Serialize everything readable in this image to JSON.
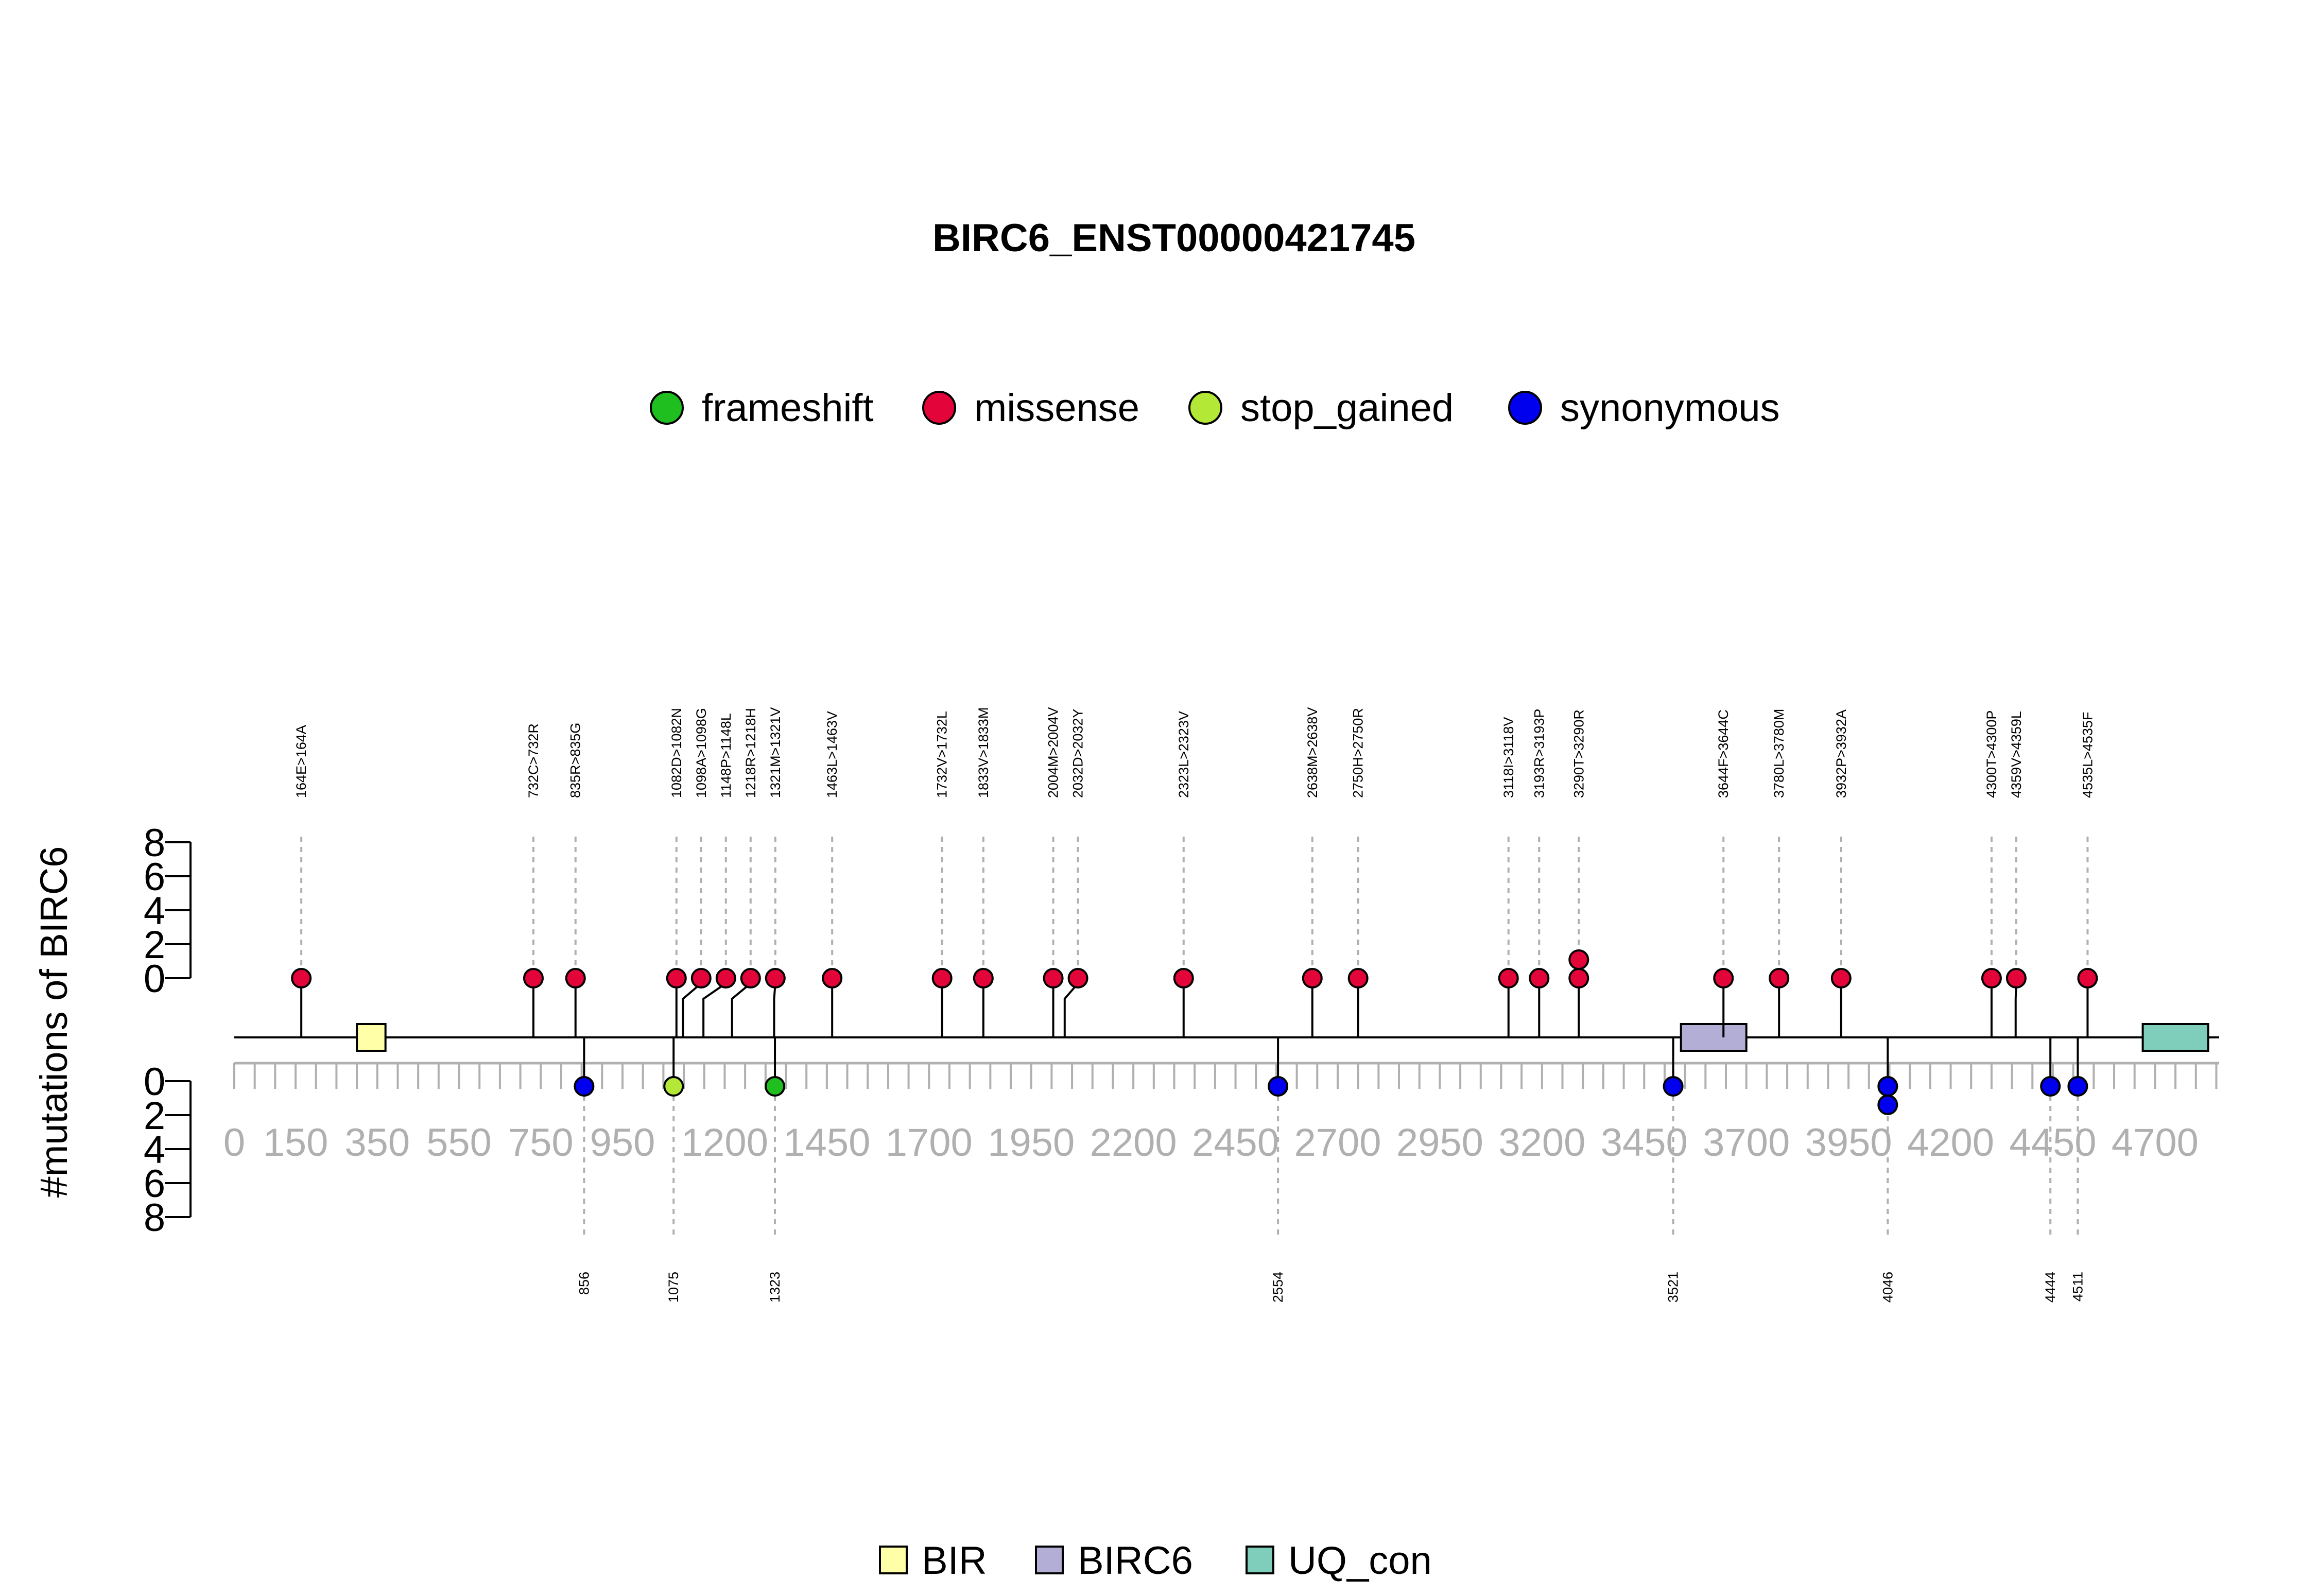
{
  "chart_data": {
    "type": "lollipop",
    "title": "BIRC6_ENST00000421745",
    "ylabel": "#mutations of BIRC6",
    "xlim": [
      0,
      4857
    ],
    "x_ticks": [
      0,
      150,
      350,
      550,
      750,
      950,
      1200,
      1450,
      1700,
      1950,
      2200,
      2450,
      2700,
      2950,
      3200,
      3450,
      3700,
      3950,
      4200,
      4450,
      4700
    ],
    "y_ticks_top": [
      0,
      2,
      4,
      6,
      8
    ],
    "y_ticks_bottom": [
      0,
      2,
      4,
      6,
      8
    ],
    "ylim": [
      0,
      8
    ],
    "legend": [
      {
        "name": "frameshift",
        "color": "#1fbf1f"
      },
      {
        "name": "missense",
        "color": "#e3053a"
      },
      {
        "name": "stop_gained",
        "color": "#b3e836"
      },
      {
        "name": "synonymous",
        "color": "#0000ee"
      }
    ],
    "domain_legend": [
      {
        "name": "BIR",
        "color": "#ffffa8"
      },
      {
        "name": "BIRC6",
        "color": "#b3aed6"
      },
      {
        "name": "UQ_con",
        "color": "#7fcdbb"
      }
    ],
    "domains": [
      {
        "name": "BIR",
        "start": 300,
        "end": 370
      },
      {
        "name": "BIRC6",
        "start": 3540,
        "end": 3700
      },
      {
        "name": "UQ_con",
        "start": 4670,
        "end": 4830
      }
    ],
    "top_mutations": [
      {
        "pos": 164,
        "label": "164E>164A",
        "count": 1,
        "type": "missense"
      },
      {
        "pos": 732,
        "label": "732C>732R",
        "count": 1,
        "type": "missense"
      },
      {
        "pos": 835,
        "label": "835R>835G",
        "count": 1,
        "type": "missense"
      },
      {
        "pos": 1082,
        "label": "1082D>1082N",
        "count": 1,
        "type": "missense"
      },
      {
        "pos": 1098,
        "label": "1098A>1098G",
        "count": 1,
        "type": "missense"
      },
      {
        "pos": 1148,
        "label": "1148P>1148L",
        "count": 1,
        "type": "missense"
      },
      {
        "pos": 1218,
        "label": "1218R>1218H",
        "count": 1,
        "type": "missense"
      },
      {
        "pos": 1321,
        "label": "1321M>1321V",
        "count": 1,
        "type": "missense"
      },
      {
        "pos": 1463,
        "label": "1463L>1463V",
        "count": 1,
        "type": "missense"
      },
      {
        "pos": 1732,
        "label": "1732V>1732L",
        "count": 1,
        "type": "missense"
      },
      {
        "pos": 1833,
        "label": "1833V>1833M",
        "count": 1,
        "type": "missense"
      },
      {
        "pos": 2004,
        "label": "2004M>2004V",
        "count": 1,
        "type": "missense"
      },
      {
        "pos": 2032,
        "label": "2032D>2032Y",
        "count": 1,
        "type": "missense"
      },
      {
        "pos": 2323,
        "label": "2323L>2323V",
        "count": 1,
        "type": "missense"
      },
      {
        "pos": 2638,
        "label": "2638M>2638V",
        "count": 1,
        "type": "missense"
      },
      {
        "pos": 2750,
        "label": "2750H>2750R",
        "count": 1,
        "type": "missense"
      },
      {
        "pos": 3118,
        "label": "3118I>3118V",
        "count": 1,
        "type": "missense"
      },
      {
        "pos": 3193,
        "label": "3193R>3193P",
        "count": 1,
        "type": "missense"
      },
      {
        "pos": 3290,
        "label": "3290T>3290R",
        "count": 2,
        "type": "missense"
      },
      {
        "pos": 3644,
        "label": "3644F>3644C",
        "count": 1,
        "type": "missense"
      },
      {
        "pos": 3780,
        "label": "3780L>3780M",
        "count": 1,
        "type": "missense"
      },
      {
        "pos": 3932,
        "label": "3932P>3932A",
        "count": 1,
        "type": "missense"
      },
      {
        "pos": 4300,
        "label": "4300T>4300P",
        "count": 1,
        "type": "missense"
      },
      {
        "pos": 4359,
        "label": "4359V>4359L",
        "count": 1,
        "type": "missense"
      },
      {
        "pos": 4535,
        "label": "4535L>4535F",
        "count": 1,
        "type": "missense"
      }
    ],
    "bottom_mutations": [
      {
        "pos": 856,
        "label": "856",
        "count": 1,
        "type": "synonymous"
      },
      {
        "pos": 1075,
        "label": "1075",
        "count": 1,
        "type": "stop_gained"
      },
      {
        "pos": 1323,
        "label": "1323",
        "count": 1,
        "type": "frameshift"
      },
      {
        "pos": 2554,
        "label": "2554",
        "count": 1,
        "type": "synonymous"
      },
      {
        "pos": 3521,
        "label": "3521",
        "count": 1,
        "type": "synonymous"
      },
      {
        "pos": 4046,
        "label": "4046",
        "count": 2,
        "type": "synonymous"
      },
      {
        "pos": 4444,
        "label": "4444",
        "count": 1,
        "type": "synonymous"
      },
      {
        "pos": 4511,
        "label": "4511",
        "count": 1,
        "type": "synonymous"
      }
    ]
  }
}
